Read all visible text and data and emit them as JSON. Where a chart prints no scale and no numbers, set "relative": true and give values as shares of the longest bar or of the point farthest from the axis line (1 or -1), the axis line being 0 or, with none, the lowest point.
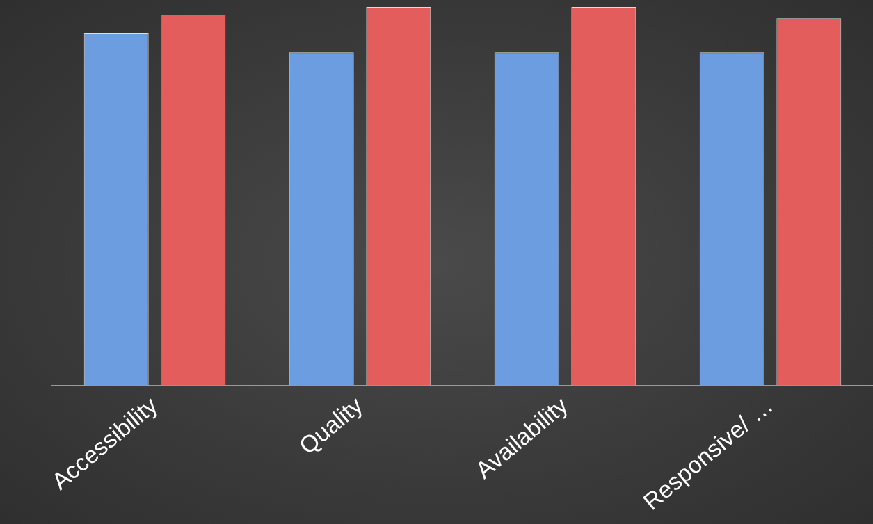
{
  "chart_data": {
    "type": "bar",
    "relative": true,
    "categories": [
      "Accessibility",
      "Quality",
      "Availability",
      "Responsive/ …"
    ],
    "series": [
      {
        "color": "#6b9de0",
        "values": [
          0.93,
          0.88,
          0.88,
          0.88
        ]
      },
      {
        "color": "#e35d5d",
        "values": [
          0.98,
          1.0,
          1.0,
          0.97
        ]
      }
    ],
    "legend": false
  }
}
